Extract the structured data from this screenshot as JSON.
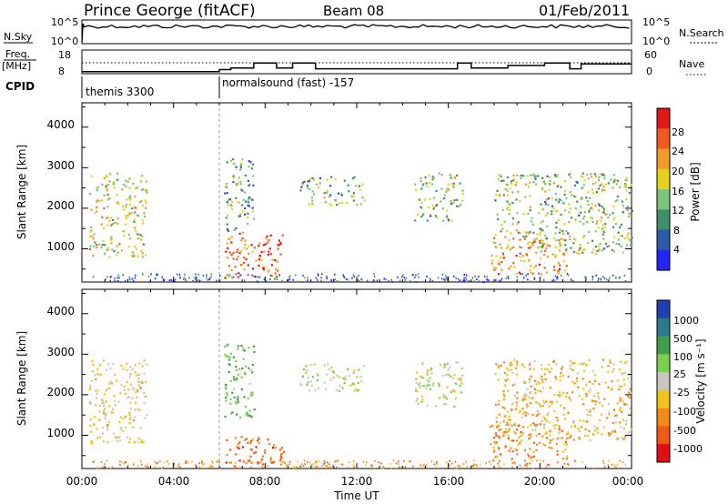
{
  "header": {
    "station": "Prince George (fitACF)",
    "beam": "Beam 08",
    "date": "01/Feb/2011"
  },
  "status_panel": {
    "nsky_label": "N.Sky",
    "nsky_ticks": [
      "10^5",
      "10^0"
    ],
    "nsearch_ticks": [
      "10^5",
      "10^0"
    ],
    "nsearch_label": "N.Search",
    "freq_label_line1": "Freq.",
    "freq_label_line2": "[MHz]",
    "freq_ticks": [
      "18",
      "8"
    ],
    "nave_ticks": [
      "60",
      "0"
    ],
    "nave_label": "Nave",
    "cpid_label": "CPID",
    "cpid_modes": [
      {
        "name": "themis 3300",
        "start_hour": 0
      },
      {
        "name": "normalsound (fast) -157",
        "start_hour": 6
      }
    ],
    "freq_steps_mhz": [
      {
        "start": 0.0,
        "end": 6.0,
        "value": 9.3
      },
      {
        "start": 6.0,
        "end": 6.5,
        "value": 10.5
      },
      {
        "start": 6.5,
        "end": 7.5,
        "value": 11.5
      },
      {
        "start": 7.5,
        "end": 8.5,
        "value": 14.5
      },
      {
        "start": 8.5,
        "end": 9.2,
        "value": 11.5
      },
      {
        "start": 9.2,
        "end": 10.2,
        "value": 14.5
      },
      {
        "start": 10.2,
        "end": 16.4,
        "value": 11.0
      },
      {
        "start": 16.4,
        "end": 17.0,
        "value": 14.5
      },
      {
        "start": 17.0,
        "end": 18.6,
        "value": 11.5
      },
      {
        "start": 18.6,
        "end": 20.2,
        "value": 13.0
      },
      {
        "start": 20.2,
        "end": 21.3,
        "value": 14.5
      },
      {
        "start": 21.3,
        "end": 21.8,
        "value": 11.0
      },
      {
        "start": 21.8,
        "end": 24.0,
        "value": 14.0
      }
    ]
  },
  "chart_data": [
    {
      "type": "heatmap",
      "title": "Power",
      "xlabel": "",
      "ylabel": "Slant Range [km]",
      "xlim": [
        0,
        24
      ],
      "ylim": [
        180,
        4600
      ],
      "y_ticks": [
        "1000",
        "2000",
        "3000",
        "4000"
      ],
      "colorbar_label": "Power [dB]",
      "colorbar_ticks": [
        "4",
        "8",
        "12",
        "16",
        "20",
        "24",
        "28"
      ],
      "colorscale": [
        "#2424ff",
        "#2a5aa8",
        "#3f8f6a",
        "#7cc47a",
        "#e6d21e",
        "#f29a2a",
        "#f05a1e",
        "#e01818"
      ],
      "scatter_regions": [
        {
          "t0": 0.3,
          "t1": 2.8,
          "r0": 800,
          "r1": 2900,
          "level": 0.55
        },
        {
          "t0": 6.2,
          "t1": 8.8,
          "r0": 300,
          "r1": 1400,
          "level": 0.85
        },
        {
          "t0": 6.2,
          "t1": 7.5,
          "r0": 1400,
          "r1": 3300,
          "level": 0.35
        },
        {
          "t0": 9.5,
          "t1": 12.3,
          "r0": 2100,
          "r1": 2800,
          "level": 0.4
        },
        {
          "t0": 14.5,
          "t1": 16.6,
          "r0": 1700,
          "r1": 2900,
          "level": 0.45
        },
        {
          "t0": 17.8,
          "t1": 21.2,
          "r0": 400,
          "r1": 1300,
          "level": 0.75
        },
        {
          "t0": 18.0,
          "t1": 24.0,
          "r0": 900,
          "r1": 2900,
          "level": 0.45
        }
      ]
    },
    {
      "type": "heatmap",
      "title": "Velocity",
      "xlabel": "Time UT",
      "ylabel": "Slant Range [km]",
      "xlim": [
        0,
        24
      ],
      "ylim": [
        180,
        4600
      ],
      "x_ticks": [
        "00:00",
        "04:00",
        "08:00",
        "12:00",
        "16:00",
        "20:00",
        "00:00"
      ],
      "y_ticks": [
        "1000",
        "2000",
        "3000",
        "4000"
      ],
      "colorbar_label": "Velocity [m s⁻¹]",
      "colorbar_ticks": [
        "1000",
        "500",
        "100",
        "25",
        "-25",
        "-100",
        "-500",
        "-1000"
      ],
      "colorscale": [
        "#1f3fb4",
        "#2e7a8a",
        "#3f9f4a",
        "#7ad04a",
        "#c8c8c0",
        "#f2c21e",
        "#f28a1a",
        "#f05a18",
        "#e01010"
      ],
      "ground_scatter_color": "#c8c8c0",
      "scatter_regions": [
        {
          "t0": 0.3,
          "t1": 2.8,
          "r0": 800,
          "r1": 2900,
          "level": -0.15
        },
        {
          "t0": 6.2,
          "t1": 8.8,
          "r0": 300,
          "r1": 1000,
          "level": -0.7
        },
        {
          "t0": 6.2,
          "t1": 7.5,
          "r0": 1400,
          "r1": 3300,
          "level": 0.35
        },
        {
          "t0": 9.5,
          "t1": 12.3,
          "r0": 2100,
          "r1": 2800,
          "level": 0.0
        },
        {
          "t0": 14.5,
          "t1": 16.6,
          "r0": 1700,
          "r1": 2900,
          "level": 0.0
        },
        {
          "t0": 17.8,
          "t1": 21.2,
          "r0": 400,
          "r1": 1300,
          "level": -0.5
        },
        {
          "t0": 18.0,
          "t1": 24.0,
          "r0": 900,
          "r1": 2900,
          "level": -0.3
        }
      ]
    }
  ]
}
